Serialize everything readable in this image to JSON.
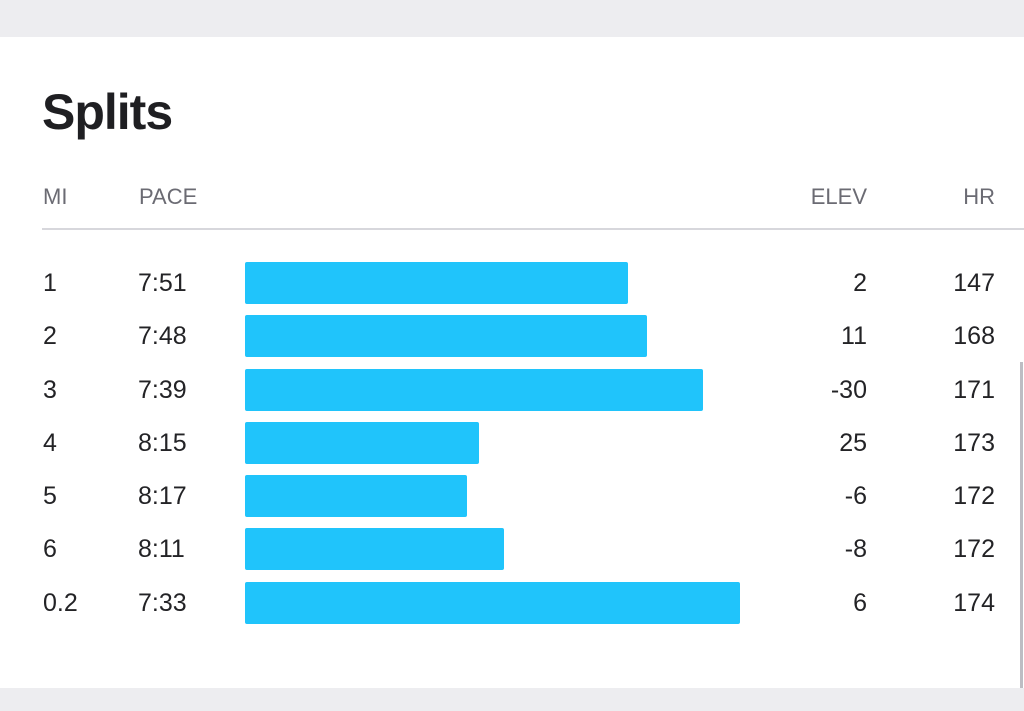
{
  "splits": {
    "title": "Splits",
    "headers": {
      "mi": "MI",
      "pace": "PACE",
      "elev": "ELEV",
      "hr": "HR"
    },
    "bar_color": "#20c4fb",
    "rows": [
      {
        "mi": "1",
        "pace": "7:51",
        "pace_seconds": 471,
        "elev": "2",
        "hr": "147"
      },
      {
        "mi": "2",
        "pace": "7:48",
        "pace_seconds": 468,
        "elev": "11",
        "hr": "168"
      },
      {
        "mi": "3",
        "pace": "7:39",
        "pace_seconds": 459,
        "elev": "-30",
        "hr": "171"
      },
      {
        "mi": "4",
        "pace": "8:15",
        "pace_seconds": 495,
        "elev": "25",
        "hr": "173"
      },
      {
        "mi": "5",
        "pace": "8:17",
        "pace_seconds": 497,
        "elev": "-6",
        "hr": "172"
      },
      {
        "mi": "6",
        "pace": "8:11",
        "pace_seconds": 491,
        "elev": "-8",
        "hr": "172"
      },
      {
        "mi": "0.2",
        "pace": "7:33",
        "pace_seconds": 453,
        "elev": "6",
        "hr": "174"
      }
    ]
  }
}
